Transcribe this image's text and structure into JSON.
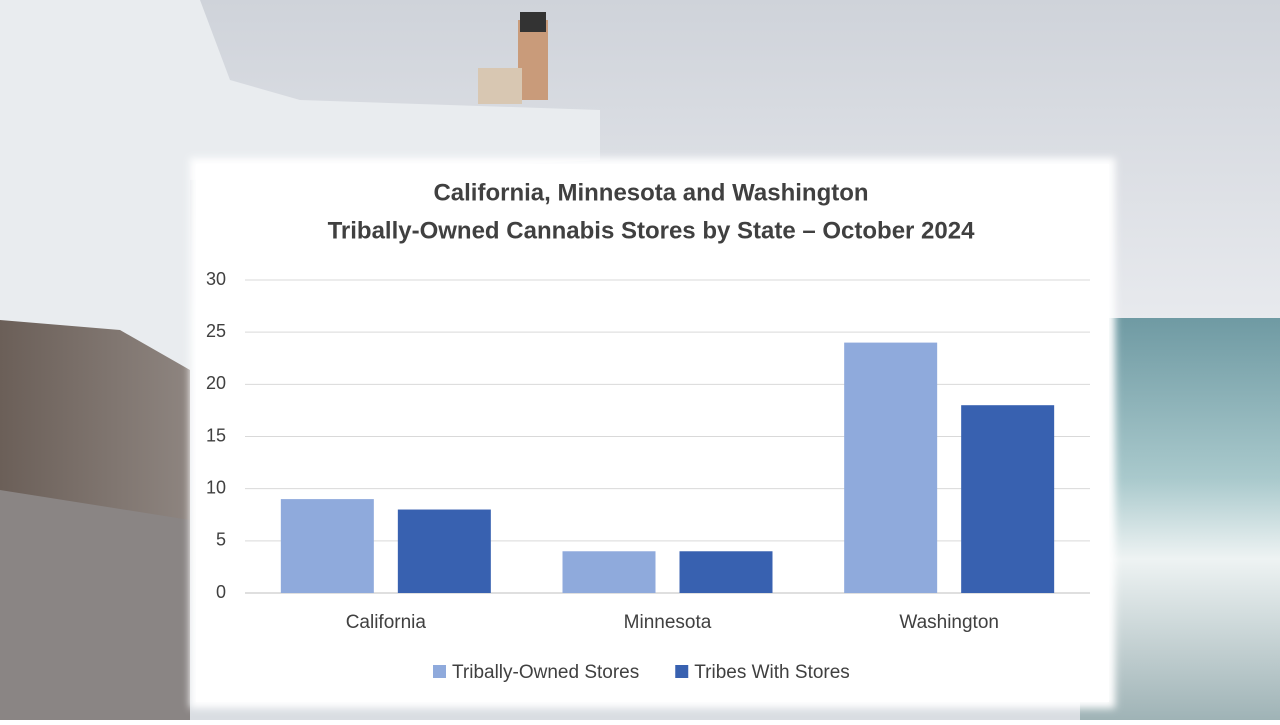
{
  "chart_data": {
    "type": "bar",
    "title": [
      "California, Minnesota and Washington",
      "Tribally-Owned Cannabis Stores by State – October 2024"
    ],
    "categories": [
      "California",
      "Minnesota",
      "Washington"
    ],
    "series": [
      {
        "name": "Tribally-Owned Stores",
        "color": "#8faadc",
        "values": [
          9,
          4,
          24
        ]
      },
      {
        "name": "Tribes With Stores",
        "color": "#3861b0",
        "values": [
          8,
          4,
          18
        ]
      }
    ],
    "ylim": [
      0,
      30
    ],
    "yticks": [
      0,
      5,
      10,
      15,
      20,
      25,
      30
    ],
    "grid": true,
    "legend": "bottom"
  }
}
